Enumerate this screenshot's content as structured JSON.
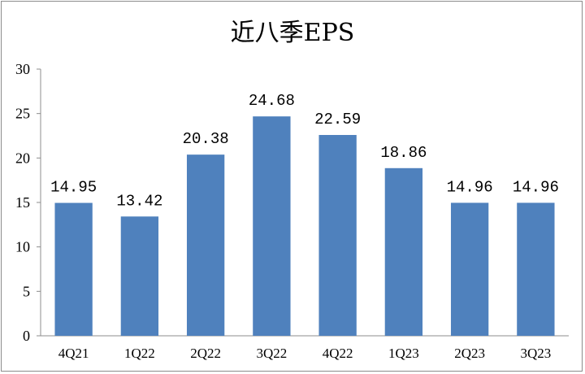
{
  "chart_data": {
    "type": "bar",
    "title": "近八季EPS",
    "categories": [
      "4Q21",
      "1Q22",
      "2Q22",
      "3Q22",
      "4Q22",
      "1Q23",
      "2Q23",
      "3Q23"
    ],
    "values": [
      14.95,
      13.42,
      20.38,
      24.68,
      22.59,
      18.86,
      14.96,
      14.96
    ],
    "data_labels": [
      "14.95",
      "13.42",
      "20.38",
      "24.68",
      "22.59",
      "18.86",
      "14.96",
      "14.96"
    ],
    "ylim": [
      0,
      30
    ],
    "yticks": [
      "0",
      "5",
      "10",
      "15",
      "20",
      "25",
      "30"
    ],
    "grid": false,
    "legend": "none",
    "bar_color": "#4f81bd"
  }
}
